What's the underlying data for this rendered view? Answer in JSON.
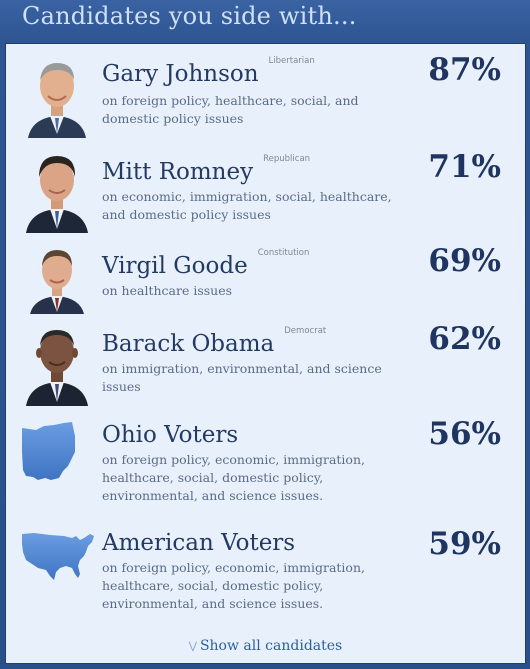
{
  "header": {
    "title": "Candidates you side with..."
  },
  "candidates": [
    {
      "name": "Gary Johnson",
      "party": "Libertarian",
      "description": "on foreign policy, healthcare, social, and domestic policy issues",
      "percent": "87%"
    },
    {
      "name": "Mitt Romney",
      "party": "Republican",
      "description": "on economic, immigration, social, healthcare, and domestic policy issues",
      "percent": "71%"
    },
    {
      "name": "Virgil Goode",
      "party": "Constitution",
      "description": "on healthcare issues",
      "percent": "69%"
    },
    {
      "name": "Barack Obama",
      "party": "Democrat",
      "description": "on immigration, environmental, and science issues",
      "percent": "62%"
    },
    {
      "name": "Ohio Voters",
      "party": "",
      "description": "on foreign policy, economic, immigration, healthcare, social, domestic policy, environmental, and science issues.",
      "percent": "56%"
    },
    {
      "name": "American Voters",
      "party": "",
      "description": "on foreign policy, economic, immigration, healthcare, social, domestic policy, environmental, and science issues.",
      "percent": "59%"
    }
  ],
  "footer": {
    "show_all_label": "Show all candidates",
    "chevron_icon": "chevron-down-icon"
  },
  "colors": {
    "panel_bg": "#e8f1fb",
    "frame_bg": "#2c5089",
    "name_text": "#243a63",
    "map_blue": "#4a82cf"
  }
}
